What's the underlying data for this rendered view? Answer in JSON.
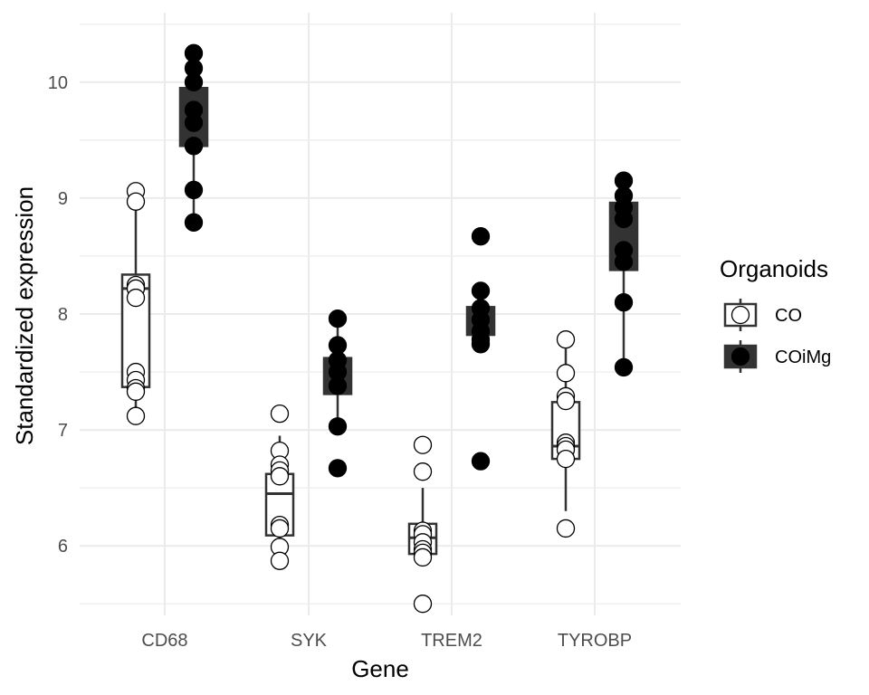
{
  "chart_data": {
    "type": "boxplot",
    "xlabel": "Gene",
    "ylabel": "Standardized expression",
    "categories": [
      "CD68",
      "SYK",
      "TREM2",
      "TYROBP"
    ],
    "y_ticks": [
      6,
      7,
      8,
      9,
      10
    ],
    "ylim": [
      5.4,
      10.6
    ],
    "grid": true,
    "legend": {
      "title": "Organoids",
      "position": "right"
    },
    "series": [
      {
        "name": "CO",
        "fill": "#ffffff",
        "box_fill": "#ffffff",
        "boxes": [
          {
            "q1": 7.37,
            "median": 8.22,
            "q3": 8.34,
            "whisker_low": 7.12,
            "whisker_high": 8.97
          },
          {
            "q1": 6.09,
            "median": 6.45,
            "q3": 6.62,
            "whisker_low": 5.87,
            "whisker_high": 6.95
          },
          {
            "q1": 5.93,
            "median": 6.07,
            "q3": 6.19,
            "whisker_low": 5.9,
            "whisker_high": 6.5
          },
          {
            "q1": 6.75,
            "median": 6.86,
            "q3": 7.24,
            "whisker_low": 6.3,
            "whisker_high": 7.7
          }
        ],
        "points": [
          [
            9.06,
            8.97,
            8.25,
            8.22,
            8.14,
            7.5,
            7.43,
            7.36,
            7.33,
            7.12
          ],
          [
            7.14,
            6.82,
            6.7,
            6.65,
            6.6,
            6.18,
            6.15,
            5.99,
            5.87
          ],
          [
            6.87,
            6.64,
            6.13,
            6.1,
            6.03,
            5.97,
            5.94,
            5.9,
            5.5
          ],
          [
            7.78,
            7.49,
            7.29,
            7.25,
            6.89,
            6.86,
            6.83,
            6.75,
            6.15
          ]
        ]
      },
      {
        "name": "COiMg",
        "fill": "#000000",
        "box_fill": "#333333",
        "boxes": [
          {
            "q1": 9.45,
            "median": 9.63,
            "q3": 9.95,
            "whisker_low": 8.79,
            "whisker_high": 10.25
          },
          {
            "q1": 7.31,
            "median": 7.44,
            "q3": 7.62,
            "whisker_low": 7.03,
            "whisker_high": 7.96
          },
          {
            "q1": 7.82,
            "median": 7.95,
            "q3": 8.06,
            "whisker_low": 7.74,
            "whisker_high": 8.2
          },
          {
            "q1": 8.38,
            "median": 8.85,
            "q3": 8.96,
            "whisker_low": 7.54,
            "whisker_high": 9.15
          }
        ],
        "points": [
          [
            10.25,
            10.12,
            10.0,
            9.76,
            9.65,
            9.45,
            9.07,
            8.79
          ],
          [
            7.96,
            7.73,
            7.6,
            7.5,
            7.38,
            7.03,
            6.67
          ],
          [
            8.67,
            8.2,
            8.05,
            7.95,
            7.85,
            7.78,
            7.74,
            6.73
          ],
          [
            9.15,
            9.02,
            8.92,
            8.82,
            8.55,
            8.45,
            8.1,
            7.54
          ]
        ]
      }
    ]
  }
}
